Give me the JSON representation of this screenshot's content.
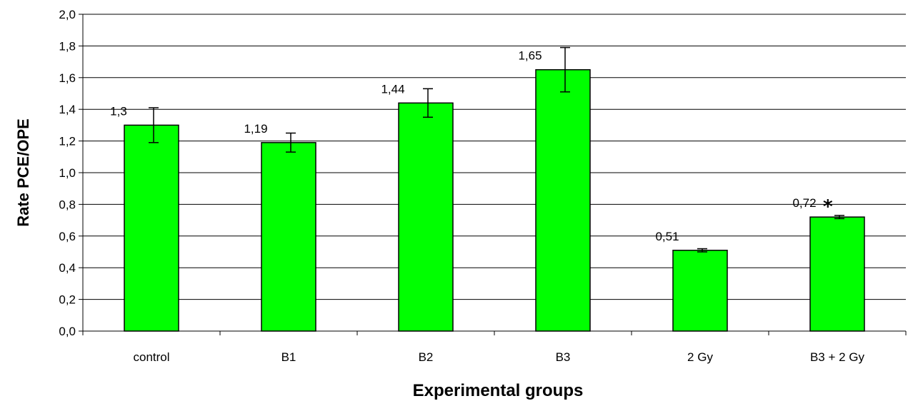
{
  "chart_data": {
    "type": "bar",
    "xlabel": "Experimental groups",
    "ylabel": "Rate PCE/OPE",
    "categories": [
      "control",
      "B1",
      "B2",
      "B3",
      "2 Gy",
      "B3 + 2 Gy"
    ],
    "values": [
      1.3,
      1.19,
      1.44,
      1.65,
      0.51,
      0.72
    ],
    "value_labels": [
      "1,3",
      "1,19",
      "1,44",
      "1,65",
      "0,51",
      "0,72"
    ],
    "error": [
      0.11,
      0.06,
      0.09,
      0.14,
      0.01,
      0.01
    ],
    "significance_marker": {
      "category": "B3 + 2 Gy",
      "symbol": "*"
    },
    "ylim": [
      0,
      2.0
    ],
    "yticks": [
      0,
      0.2,
      0.4,
      0.6,
      0.8,
      1.0,
      1.2,
      1.4,
      1.6,
      1.8,
      2.0
    ],
    "ytick_labels": [
      "0,0",
      "0,2",
      "0,4",
      "0,6",
      "0,8",
      "1,0",
      "1,2",
      "1,4",
      "1,6",
      "1,8",
      "2,0"
    ],
    "grid": true,
    "bar_color": "#00ff00",
    "bar_edge_color": "#000000"
  }
}
